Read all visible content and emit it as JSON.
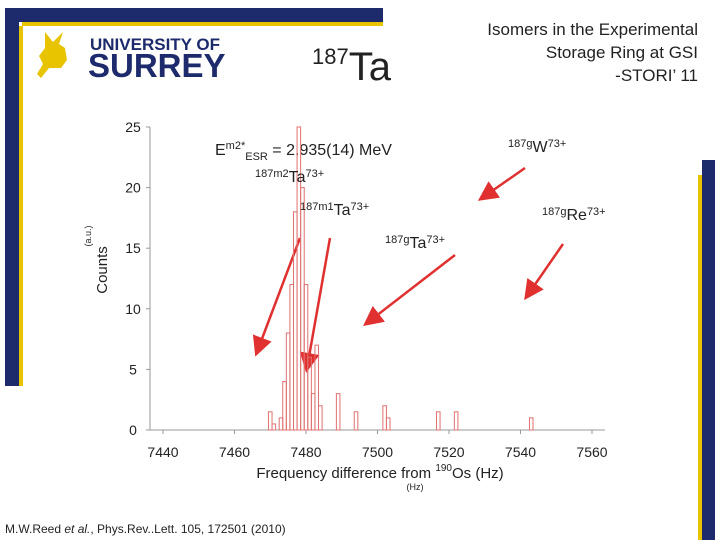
{
  "logo": {
    "line1": "UNIVERSITY OF",
    "line2": "SURREY"
  },
  "heading": {
    "mass": "187",
    "element": "Ta"
  },
  "slide_title": [
    "Isomers in the Experimental",
    "Storage Ring at GSI",
    "-STORI’ 11"
  ],
  "citation": {
    "authors": "M.W.Reed ",
    "etal": "et al.",
    "ref": ", Phys.Rev..Lett. 105, 172501 (2010)"
  },
  "chart_data": {
    "type": "bar",
    "x": [
      7470,
      7471,
      7473,
      7474,
      7475,
      7476,
      7477,
      7478,
      7479,
      7480,
      7481,
      7482,
      7483,
      7484,
      7489,
      7494,
      7502,
      7503,
      7517,
      7522,
      7543
    ],
    "values": [
      1.5,
      0.5,
      1,
      4,
      8,
      12,
      18,
      25,
      20,
      12,
      6,
      3,
      7,
      2,
      3,
      1.5,
      2,
      1,
      1.5,
      1.5,
      1
    ],
    "color": "#e07070",
    "xlim": [
      7440,
      7560
    ],
    "xticks": [
      7440,
      7460,
      7480,
      7500,
      7520,
      7540,
      7560
    ],
    "ylim": [
      0,
      25
    ],
    "yticks": [
      0,
      5,
      10,
      15,
      20,
      25
    ],
    "grid": false,
    "ylabel": "Counts",
    "ylabel_unit": "(a.u.)",
    "xlabel": {
      "pre": "Frequency difference from ",
      "sup": "190",
      "main": "Os (Hz)"
    },
    "xlabel_unit": "(Hz)",
    "energy": {
      "E": "E",
      "sup": "m2*",
      "sub": "ESR",
      "rest": " = 2.935(14) MeV"
    },
    "annotations": [
      {
        "pre": "187m2",
        "main": "Ta",
        "post": "73+"
      },
      {
        "pre": "187m1",
        "main": "Ta",
        "post": "73+"
      },
      {
        "pre": "187g",
        "main": "Ta",
        "post": "73+"
      },
      {
        "pre": "187g",
        "main": "W",
        "post": "73+"
      },
      {
        "pre": "187g",
        "main": "Re",
        "post": "73+"
      }
    ]
  }
}
